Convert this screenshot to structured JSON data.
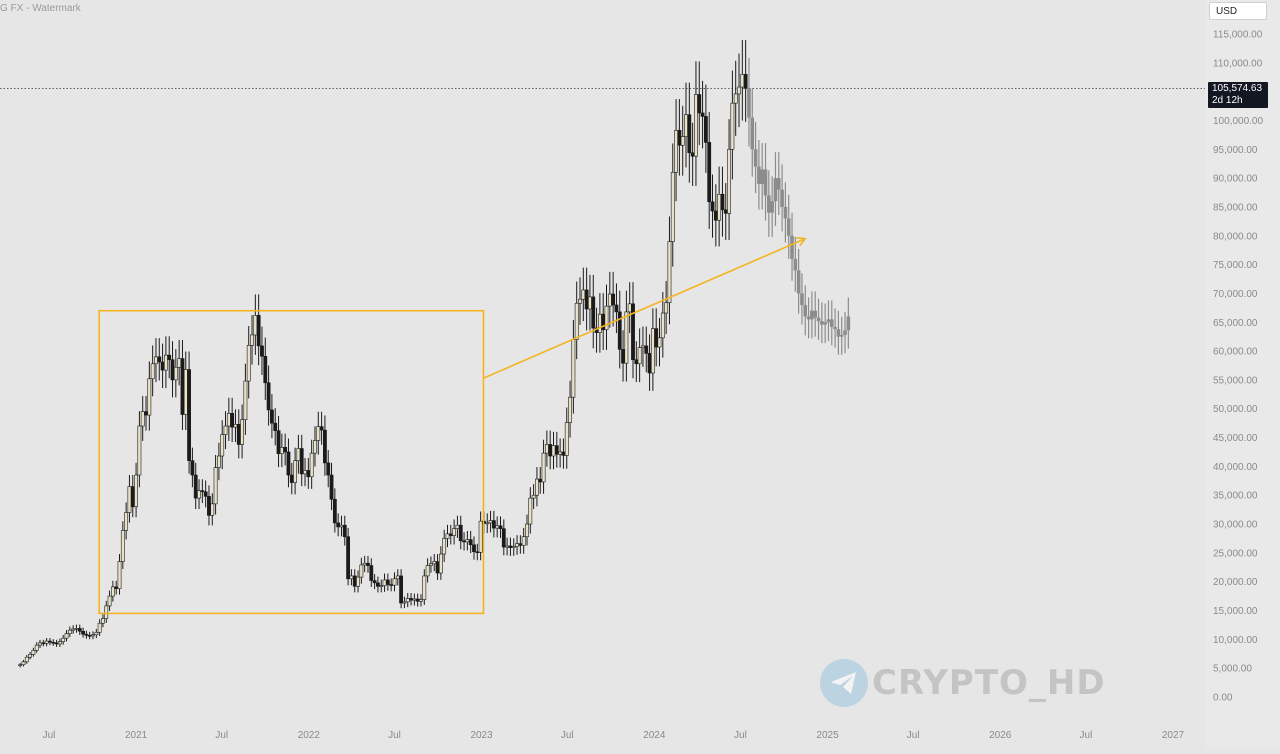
{
  "watermark_text": "G FX - Watermark",
  "currency": "USD",
  "current_price": "105,574.63",
  "countdown": "2d 12h",
  "logo_text": "CRYPTO_HD",
  "colors": {
    "background": "#e6e6e6",
    "candle": "#1b1b1b",
    "candle_body_up": "#e8e2c8",
    "projection": "#8c8c8c",
    "annotation": "#f5b320",
    "axis_text": "#8a8a8a",
    "price_line": "#333333"
  },
  "chart_data": {
    "type": "candlestick",
    "y_axis": {
      "min": 0,
      "max": 115000,
      "ticks": [
        "0.00",
        "5,000.00",
        "10,000.00",
        "15,000.00",
        "20,000.00",
        "25,000.00",
        "30,000.00",
        "35,000.00",
        "40,000.00",
        "45,000.00",
        "50,000.00",
        "55,000.00",
        "60,000.00",
        "65,000.00",
        "70,000.00",
        "75,000.00",
        "80,000.00",
        "85,000.00",
        "90,000.00",
        "95,000.00",
        "100,000.00",
        "105,000.00",
        "110,000.00",
        "115,000.00"
      ],
      "tick_values": [
        0,
        5000,
        10000,
        15000,
        20000,
        25000,
        30000,
        35000,
        40000,
        45000,
        50000,
        55000,
        60000,
        65000,
        70000,
        75000,
        80000,
        85000,
        90000,
        95000,
        100000,
        105000,
        110000,
        115000
      ]
    },
    "x_axis": {
      "labels": [
        "Jul",
        "2021",
        "Jul",
        "2022",
        "Jul",
        "2023",
        "Jul",
        "2024",
        "Jul",
        "2025",
        "Jul",
        "2026",
        "Jul",
        "2027"
      ],
      "label_dates": [
        "2020-07-01",
        "2021-01-01",
        "2021-07-01",
        "2022-01-01",
        "2022-07-01",
        "2023-01-01",
        "2023-07-01",
        "2024-01-01",
        "2024-07-01",
        "2025-01-01",
        "2025-07-01",
        "2026-01-01",
        "2026-07-01",
        "2027-01-01"
      ]
    },
    "current_price": 105574.63,
    "historical_closes": {
      "start": "2020-05-01",
      "interval": "week",
      "values": [
        5600,
        6100,
        6900,
        7400,
        8100,
        9000,
        9400,
        9300,
        9700,
        9500,
        9400,
        9200,
        9600,
        10200,
        11000,
        11600,
        11800,
        11900,
        11400,
        10900,
        10700,
        10600,
        10800,
        11200,
        12800,
        13600,
        15800,
        17500,
        19100,
        18800,
        23500,
        28900,
        32000,
        36500,
        33000,
        38500,
        47000,
        49500,
        48900,
        55200,
        57800,
        59000,
        58100,
        56700,
        59300,
        58500,
        55000,
        57200,
        58700,
        49000,
        56800,
        41000,
        38500,
        34500,
        35800,
        35600,
        34800,
        31500,
        33500,
        39800,
        41800,
        45500,
        47000,
        49200,
        46800,
        47300,
        43800,
        48100,
        54800,
        61000,
        62800,
        66200,
        60900,
        59100,
        54500,
        49800,
        47500,
        46200,
        42200,
        43300,
        42500,
        38500,
        37200,
        41000,
        43100,
        38700,
        39300,
        38200,
        42300,
        44500,
        46900,
        46300,
        40600,
        38500,
        34300,
        30200,
        29500,
        29800,
        27800,
        20500,
        21000,
        19200,
        20800,
        22900,
        23200,
        22800,
        20200,
        19800,
        19200,
        19300,
        20300,
        19500,
        19400,
        20500,
        21000,
        16300,
        16500,
        17100,
        16800,
        17000,
        16600,
        16900,
        21000,
        22800,
        23100,
        23500,
        21500,
        24800,
        27500,
        28300,
        28000,
        29200,
        29800,
        27100,
        26900,
        27300,
        26400,
        25200,
        25100,
        30500,
        30100,
        30200,
        30600,
        29300,
        29700,
        29200,
        26000,
        26200,
        25900,
        26100,
        26600,
        26300,
        27800,
        30000,
        34500,
        35000,
        37800,
        37300,
        42300,
        43800,
        41800,
        43600,
        42100,
        42500,
        41900,
        47600,
        52000,
        62000,
        68300,
        69000,
        70600,
        67300,
        69400,
        64000,
        63200,
        66400,
        63700,
        67800,
        69900,
        68000,
        66800,
        60300,
        57900,
        66800,
        68200,
        58500,
        57800,
        60600,
        60900,
        59600,
        56200,
        63900,
        60700,
        62300,
        66600,
        68400,
        79000,
        91000,
        98300,
        95700,
        97200,
        101000,
        94400,
        93800,
        104500,
        101300,
        100700,
        96200,
        85900,
        84300,
        82700,
        87200,
        84500,
        83900,
        95000,
        103000,
        104600,
        105800,
        108000,
        105574
      ]
    },
    "projection_closes": {
      "values": [
        105574,
        100500,
        95000,
        92000,
        89000,
        91500,
        87000,
        84000,
        86000,
        90000,
        88000,
        85000,
        83000,
        80000,
        76000,
        74000,
        70000,
        68000,
        66000,
        65500,
        67000,
        65800,
        65200,
        64600,
        65000,
        65500,
        64200,
        63800,
        62500,
        62800,
        63600,
        66000
      ]
    },
    "annotation": {
      "type": "rectangle-with-arrow",
      "box": {
        "from": "2020-10-15",
        "to": "2023-01-05",
        "top_price": 67000,
        "bottom_price": 14500
      },
      "arrow": {
        "from_date": "2023-01-05",
        "from_price": 55300,
        "to_date": "2024-11-15",
        "to_price": 79500
      }
    }
  }
}
